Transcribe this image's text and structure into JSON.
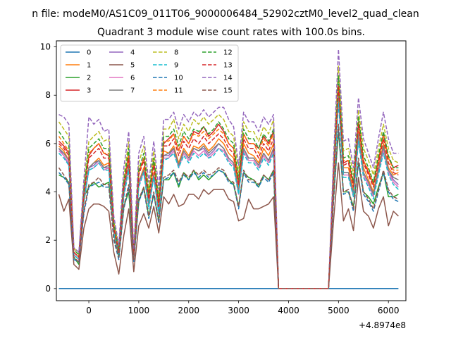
{
  "chart_data": {
    "type": "line",
    "suptitle": "n file: modeM0/AS1C09_011T06_9000006484_52902cztM0_level2_quad_clean",
    "title": "Quadrant 3 module wise count rates with 100.0s bins.",
    "x_offset_label": "+4.8974e8",
    "xlim": [
      -650,
      6350
    ],
    "ylim": [
      -0.5,
      10.25
    ],
    "xticks": [
      0,
      1000,
      2000,
      3000,
      4000,
      5000,
      6000
    ],
    "yticks": [
      0,
      2,
      4,
      6,
      8,
      10
    ],
    "legend_position": "upper-left",
    "legend_columns": 4,
    "grid": false,
    "x": [
      -600,
      -500,
      -400,
      -300,
      -200,
      -100,
      0,
      100,
      200,
      300,
      400,
      500,
      600,
      700,
      800,
      900,
      1000,
      1100,
      1200,
      1300,
      1400,
      1500,
      1600,
      1700,
      1800,
      1900,
      2000,
      2100,
      2200,
      2300,
      2400,
      2500,
      2600,
      2700,
      2800,
      2900,
      3000,
      3100,
      3200,
      3300,
      3400,
      3500,
      3600,
      3700,
      3800,
      3900,
      4000,
      4100,
      4200,
      4300,
      4400,
      4500,
      4600,
      4700,
      4800,
      4900,
      5000,
      5100,
      5200,
      5300,
      5400,
      5500,
      5600,
      5700,
      5800,
      5900,
      6000,
      6100,
      6200
    ],
    "series": [
      {
        "name": "0",
        "color": "#1f77b4",
        "dash": false,
        "values": [
          0,
          0,
          0,
          0,
          0,
          0,
          0,
          0,
          0,
          0,
          0,
          0,
          0,
          0,
          0,
          0,
          0,
          0,
          0,
          0,
          0,
          0,
          0,
          0,
          0,
          0,
          0,
          0,
          0,
          0,
          0,
          0,
          0,
          0,
          0,
          0,
          0,
          0,
          0,
          0,
          0,
          0,
          0,
          0,
          0,
          0,
          0,
          0,
          0,
          0,
          0,
          0,
          0,
          0,
          0,
          0,
          0,
          0,
          0,
          0,
          0,
          0,
          0,
          0,
          0,
          0,
          0,
          0,
          0
        ]
      },
      {
        "name": "1",
        "color": "#ff7f0e",
        "dash": false,
        "values": [
          5.9,
          5.7,
          5.3,
          1.4,
          1.2,
          3.5,
          5.0,
          5.2,
          5.4,
          5.1,
          5.2,
          2.5,
          1.5,
          4.0,
          5.2,
          1.3,
          4.4,
          5.0,
          3.5,
          4.8,
          3.2,
          5.7,
          5.6,
          5.9,
          5.2,
          5.8,
          5.5,
          5.9,
          5.8,
          6.0,
          5.7,
          5.9,
          6.2,
          6.0,
          5.6,
          5.4,
          4.2,
          6.0,
          5.6,
          5.5,
          5.2,
          5.8,
          5.5,
          6.0,
          0,
          0,
          0,
          0,
          0,
          0,
          0,
          0,
          0,
          0,
          0,
          4.4,
          8.2,
          5.0,
          5.0,
          4.0,
          6.5,
          5.0,
          4.5,
          4.0,
          5.0,
          6.0,
          5.0,
          4.7,
          4.8
        ]
      },
      {
        "name": "2",
        "color": "#2ca02c",
        "dash": false,
        "values": [
          4.7,
          4.6,
          4.4,
          1.3,
          1.0,
          3.8,
          4.2,
          4.4,
          4.2,
          4.3,
          4.4,
          2.3,
          1.3,
          3.4,
          4.0,
          1.2,
          3.6,
          4.2,
          3.0,
          3.9,
          2.8,
          4.5,
          4.5,
          4.8,
          4.2,
          4.8,
          4.5,
          4.9,
          4.5,
          4.7,
          4.5,
          4.7,
          4.9,
          4.8,
          4.5,
          4.3,
          3.4,
          4.8,
          4.6,
          4.5,
          4.2,
          4.7,
          4.5,
          4.9,
          0,
          0,
          0,
          0,
          0,
          0,
          0,
          0,
          0,
          0,
          0,
          3.8,
          6.5,
          4.0,
          4.0,
          3.4,
          5.2,
          4.0,
          3.8,
          3.5,
          4.2,
          4.8,
          3.8,
          3.8,
          3.9
        ]
      },
      {
        "name": "3",
        "color": "#d62728",
        "dash": false,
        "values": [
          6.1,
          5.9,
          5.6,
          1.5,
          1.3,
          4.0,
          5.5,
          5.8,
          6.0,
          5.6,
          5.5,
          2.6,
          1.6,
          4.3,
          5.6,
          1.4,
          4.8,
          5.4,
          3.8,
          5.3,
          3.5,
          6.0,
          6.2,
          6.4,
          5.7,
          6.3,
          6.0,
          6.5,
          6.4,
          6.7,
          6.3,
          6.5,
          6.8,
          6.5,
          6.0,
          5.8,
          4.4,
          6.4,
          6.0,
          6.0,
          5.8,
          6.3,
          6.0,
          6.5,
          0,
          0,
          0,
          0,
          0,
          0,
          0,
          0,
          0,
          0,
          0,
          4.7,
          8.4,
          5.2,
          5.3,
          4.3,
          6.9,
          5.3,
          4.8,
          4.3,
          5.3,
          6.4,
          5.4,
          5.0,
          5.1
        ]
      },
      {
        "name": "4",
        "color": "#9467bd",
        "dash": false,
        "values": [
          5.8,
          5.5,
          5.1,
          1.4,
          1.2,
          3.6,
          5.0,
          5.1,
          5.3,
          5.0,
          5.0,
          2.4,
          1.5,
          3.9,
          5.1,
          1.3,
          4.3,
          4.9,
          3.4,
          4.7,
          3.1,
          5.5,
          5.5,
          5.8,
          5.1,
          5.7,
          5.4,
          5.8,
          5.7,
          5.8,
          5.5,
          5.7,
          6.0,
          5.8,
          5.4,
          5.2,
          4.0,
          5.8,
          5.4,
          5.4,
          5.1,
          5.6,
          5.3,
          5.8,
          0,
          0,
          0,
          0,
          0,
          0,
          0,
          0,
          0,
          0,
          0,
          4.3,
          7.9,
          4.8,
          4.8,
          3.9,
          6.3,
          4.8,
          4.4,
          3.9,
          4.9,
          5.8,
          4.9,
          4.5,
          4.3
        ]
      },
      {
        "name": "5",
        "color": "#8c564b",
        "dash": false,
        "values": [
          3.9,
          3.2,
          3.7,
          1.0,
          0.8,
          2.5,
          3.3,
          3.5,
          3.5,
          3.4,
          3.2,
          1.5,
          0.6,
          2.2,
          3.3,
          0.7,
          2.6,
          3.1,
          2.5,
          3.4,
          2.3,
          3.8,
          3.5,
          3.9,
          3.4,
          3.5,
          3.9,
          3.9,
          3.7,
          4.1,
          3.9,
          4.1,
          4.1,
          4.1,
          3.7,
          3.6,
          2.8,
          2.9,
          3.7,
          3.3,
          3.3,
          3.4,
          3.5,
          3.8,
          0,
          0,
          0,
          0,
          0,
          0,
          0,
          0,
          0,
          0,
          0,
          2.8,
          5.2,
          2.8,
          3.3,
          2.4,
          4.6,
          3.2,
          3.0,
          2.5,
          3.3,
          3.8,
          2.6,
          3.2,
          3.0
        ]
      },
      {
        "name": "6",
        "color": "#e377c2",
        "dash": false,
        "values": [
          5.7,
          5.5,
          5.2,
          1.4,
          1.2,
          3.6,
          4.9,
          5.0,
          5.2,
          4.9,
          5.0,
          2.4,
          1.5,
          3.9,
          5.0,
          1.3,
          4.3,
          4.8,
          3.4,
          4.6,
          3.1,
          5.4,
          5.4,
          5.7,
          5.0,
          5.6,
          5.3,
          5.7,
          5.5,
          5.7,
          5.4,
          5.6,
          5.8,
          5.7,
          5.3,
          5.1,
          3.9,
          5.7,
          5.3,
          5.3,
          5.0,
          5.5,
          5.2,
          5.7,
          0,
          0,
          0,
          0,
          0,
          0,
          0,
          0,
          0,
          0,
          0,
          4.2,
          7.8,
          4.7,
          4.7,
          3.8,
          6.2,
          4.7,
          4.3,
          3.8,
          4.8,
          5.7,
          4.8,
          4.4,
          4.2
        ]
      },
      {
        "name": "7",
        "color": "#7f7f7f",
        "dash": false,
        "values": [
          5.8,
          5.6,
          5.3,
          1.5,
          1.3,
          3.7,
          5.0,
          5.2,
          5.3,
          5.0,
          5.1,
          2.5,
          1.6,
          4.0,
          5.1,
          1.4,
          4.4,
          4.9,
          3.5,
          4.7,
          3.2,
          5.5,
          5.6,
          5.8,
          5.1,
          5.7,
          5.4,
          5.8,
          5.7,
          5.9,
          5.6,
          5.8,
          6.0,
          5.8,
          5.4,
          5.2,
          4.0,
          5.8,
          5.4,
          5.4,
          5.1,
          5.6,
          5.3,
          5.8,
          0,
          0,
          0,
          0,
          0,
          0,
          0,
          0,
          0,
          0,
          0,
          4.3,
          8.0,
          4.8,
          4.8,
          3.9,
          6.4,
          4.8,
          4.4,
          3.9,
          4.9,
          5.9,
          4.9,
          4.6,
          4.5
        ]
      },
      {
        "name": "8",
        "color": "#bcbd22",
        "dash": true,
        "values": [
          6.9,
          6.6,
          6.3,
          1.7,
          1.4,
          4.3,
          6.1,
          6.3,
          6.5,
          6.1,
          6.2,
          2.8,
          1.7,
          4.6,
          6.1,
          1.5,
          5.2,
          5.9,
          4.1,
          5.7,
          3.8,
          6.6,
          6.6,
          7.0,
          6.2,
          6.8,
          6.5,
          7.0,
          6.8,
          7.1,
          6.8,
          7.0,
          7.2,
          7.0,
          6.5,
          6.3,
          4.8,
          6.9,
          6.5,
          6.5,
          6.1,
          6.7,
          6.4,
          7.0,
          0,
          0,
          0,
          0,
          0,
          0,
          0,
          0,
          0,
          0,
          0,
          5.1,
          9.2,
          5.7,
          5.8,
          4.7,
          7.4,
          5.8,
          5.3,
          4.7,
          5.8,
          6.8,
          5.8,
          5.3,
          5.2
        ]
      },
      {
        "name": "9",
        "color": "#17becf",
        "dash": true,
        "values": [
          5.6,
          5.4,
          5.1,
          1.4,
          1.2,
          3.6,
          4.9,
          5.0,
          5.2,
          4.9,
          4.9,
          2.3,
          1.4,
          3.8,
          4.9,
          1.3,
          4.2,
          4.8,
          3.3,
          4.6,
          3.1,
          5.3,
          5.4,
          5.6,
          5.0,
          5.5,
          5.2,
          5.6,
          5.4,
          5.6,
          5.4,
          5.5,
          5.8,
          5.6,
          5.2,
          5.0,
          3.9,
          5.6,
          5.2,
          5.2,
          4.9,
          5.4,
          5.1,
          5.6,
          0,
          0,
          0,
          0,
          0,
          0,
          0,
          0,
          0,
          0,
          0,
          4.1,
          7.7,
          4.6,
          4.6,
          3.8,
          6.1,
          4.6,
          4.2,
          3.7,
          4.7,
          5.6,
          4.7,
          4.3,
          4.1
        ]
      },
      {
        "name": "10",
        "color": "#1f77b4",
        "dash": true,
        "values": [
          4.8,
          4.6,
          4.3,
          1.2,
          1.1,
          3.1,
          4.2,
          4.3,
          4.4,
          4.2,
          4.2,
          2.0,
          1.2,
          3.3,
          4.2,
          1.1,
          3.6,
          4.1,
          2.9,
          3.9,
          2.7,
          4.5,
          4.6,
          4.8,
          4.3,
          4.7,
          4.5,
          4.8,
          4.6,
          4.8,
          4.6,
          4.7,
          4.9,
          4.8,
          4.4,
          4.3,
          3.3,
          4.8,
          4.4,
          4.4,
          4.2,
          4.6,
          4.4,
          4.8,
          0,
          0,
          0,
          0,
          0,
          0,
          0,
          0,
          0,
          0,
          0,
          3.6,
          6.6,
          3.9,
          4.0,
          3.2,
          5.2,
          3.9,
          3.6,
          3.2,
          4.0,
          4.8,
          4.0,
          3.7,
          3.6
        ]
      },
      {
        "name": "11",
        "color": "#ff7f0e",
        "dash": true,
        "values": [
          6.3,
          6.0,
          5.7,
          1.5,
          1.3,
          4.0,
          5.6,
          5.8,
          6.0,
          5.6,
          5.6,
          2.6,
          1.6,
          4.3,
          5.6,
          1.4,
          4.8,
          5.4,
          3.8,
          5.3,
          3.5,
          6.1,
          6.1,
          6.4,
          5.7,
          6.3,
          6.0,
          6.4,
          6.3,
          6.5,
          6.2,
          6.4,
          6.6,
          6.4,
          6.0,
          5.8,
          4.4,
          6.4,
          6.0,
          6.0,
          5.6,
          6.2,
          5.9,
          6.4,
          0,
          0,
          0,
          0,
          0,
          0,
          0,
          0,
          0,
          0,
          0,
          4.7,
          8.6,
          5.3,
          5.3,
          4.3,
          6.9,
          5.3,
          4.9,
          4.3,
          5.4,
          6.3,
          5.4,
          4.9,
          4.9
        ]
      },
      {
        "name": "12",
        "color": "#2ca02c",
        "dash": true,
        "values": [
          6.5,
          6.2,
          5.9,
          1.6,
          1.4,
          4.1,
          5.8,
          6.0,
          6.2,
          5.8,
          5.8,
          2.7,
          1.6,
          4.4,
          5.8,
          1.4,
          4.9,
          5.6,
          3.9,
          5.4,
          3.6,
          6.3,
          6.3,
          6.6,
          5.9,
          6.5,
          6.2,
          6.6,
          6.5,
          6.7,
          6.4,
          6.6,
          6.9,
          6.6,
          6.2,
          6.0,
          4.5,
          6.6,
          6.2,
          6.2,
          5.8,
          6.4,
          6.1,
          6.6,
          0,
          0,
          0,
          0,
          0,
          0,
          0,
          0,
          0,
          0,
          0,
          4.8,
          8.8,
          5.4,
          5.5,
          4.4,
          7.1,
          5.5,
          5.0,
          4.4,
          5.5,
          6.5,
          5.5,
          5.0,
          5.0
        ]
      },
      {
        "name": "13",
        "color": "#d62728",
        "dash": true,
        "values": [
          6.0,
          5.8,
          5.5,
          1.5,
          1.3,
          3.9,
          5.4,
          5.6,
          5.8,
          5.4,
          5.4,
          2.5,
          1.5,
          4.2,
          5.4,
          1.4,
          4.7,
          5.3,
          3.7,
          5.1,
          3.4,
          5.9,
          5.9,
          6.2,
          5.5,
          6.1,
          5.8,
          6.2,
          6.0,
          6.3,
          6.0,
          6.2,
          6.4,
          6.2,
          5.8,
          5.6,
          4.3,
          6.2,
          5.8,
          5.8,
          5.4,
          6.0,
          5.7,
          6.2,
          0,
          0,
          0,
          0,
          0,
          0,
          0,
          0,
          0,
          0,
          0,
          4.6,
          8.4,
          5.1,
          5.2,
          4.2,
          6.8,
          5.2,
          4.7,
          4.2,
          5.2,
          6.2,
          5.2,
          4.8,
          4.7
        ]
      },
      {
        "name": "14",
        "color": "#9467bd",
        "dash": true,
        "values": [
          7.2,
          7.1,
          6.8,
          1.7,
          1.5,
          4.5,
          7.1,
          6.8,
          7.0,
          6.5,
          6.6,
          3.0,
          1.8,
          5.0,
          6.5,
          1.6,
          5.6,
          6.3,
          4.4,
          6.1,
          4.1,
          7.0,
          7.0,
          7.3,
          6.6,
          7.2,
          6.9,
          7.3,
          7.1,
          7.4,
          7.1,
          7.3,
          7.5,
          7.5,
          7.0,
          6.7,
          5.1,
          7.3,
          6.9,
          6.9,
          6.5,
          7.1,
          6.8,
          7.2,
          0,
          0,
          0,
          0,
          0,
          0,
          0,
          0,
          0,
          0,
          0,
          5.4,
          9.9,
          6.1,
          6.2,
          5.0,
          7.9,
          6.2,
          5.6,
          5.0,
          6.2,
          7.3,
          6.2,
          5.6,
          5.6
        ]
      },
      {
        "name": "15",
        "color": "#8c564b",
        "dash": true,
        "values": [
          5.0,
          4.7,
          4.4,
          1.3,
          1.1,
          3.2,
          4.3,
          4.4,
          4.6,
          4.3,
          4.3,
          2.1,
          1.3,
          3.4,
          4.3,
          1.2,
          3.7,
          4.2,
          3.0,
          4.0,
          2.8,
          4.6,
          4.7,
          4.9,
          4.4,
          4.8,
          4.6,
          4.9,
          4.7,
          4.9,
          4.7,
          4.8,
          5.0,
          4.9,
          4.5,
          4.4,
          3.4,
          4.9,
          4.5,
          4.5,
          4.3,
          4.7,
          4.5,
          4.9,
          0,
          0,
          0,
          0,
          0,
          0,
          0,
          0,
          0,
          0,
          0,
          3.7,
          6.8,
          4.0,
          4.1,
          3.3,
          5.4,
          4.0,
          3.7,
          3.3,
          4.1,
          4.9,
          4.1,
          3.8,
          3.7
        ]
      }
    ]
  }
}
